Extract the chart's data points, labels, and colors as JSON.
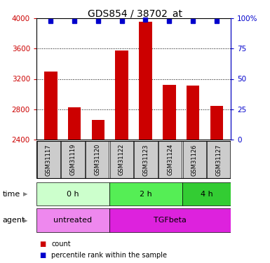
{
  "title": "GDS854 / 38702_at",
  "samples": [
    "GSM31117",
    "GSM31119",
    "GSM31120",
    "GSM31122",
    "GSM31123",
    "GSM31124",
    "GSM31126",
    "GSM31127"
  ],
  "bar_values": [
    3300,
    2820,
    2660,
    3580,
    3960,
    3120,
    3110,
    2840
  ],
  "percentile_values": [
    98,
    98,
    98,
    98,
    99,
    98,
    98,
    98
  ],
  "ylim": [
    2400,
    4000
  ],
  "yticks": [
    2400,
    2800,
    3200,
    3600,
    4000
  ],
  "y2ticks": [
    0,
    25,
    50,
    75,
    100
  ],
  "y2labels": [
    "0",
    "25",
    "50",
    "75",
    "100%"
  ],
  "bar_color": "#cc0000",
  "dot_color": "#0000cc",
  "bar_bottom": 2400,
  "time_groups": [
    {
      "label": "0 h",
      "start": 0,
      "end": 3,
      "color": "#ccffcc"
    },
    {
      "label": "2 h",
      "start": 3,
      "end": 6,
      "color": "#55ee55"
    },
    {
      "label": "4 h",
      "start": 6,
      "end": 8,
      "color": "#33cc33"
    }
  ],
  "agent_groups": [
    {
      "label": "untreated",
      "start": 0,
      "end": 3,
      "color": "#ee88ee"
    },
    {
      "label": "TGFbeta",
      "start": 3,
      "end": 8,
      "color": "#dd22dd"
    }
  ],
  "time_label": "time",
  "agent_label": "agent",
  "legend_count_label": "count",
  "legend_pct_label": "percentile rank within the sample"
}
